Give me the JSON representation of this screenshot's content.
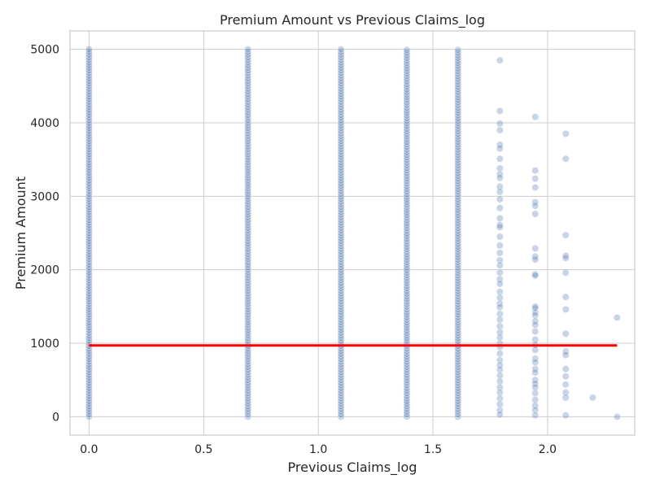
{
  "chart_data": {
    "type": "scatter",
    "title": "Premium Amount vs Previous Claims_log",
    "xlabel": "Previous Claims_log",
    "ylabel": "Premium Amount",
    "xlim": [
      -0.083,
      2.38
    ],
    "ylim": [
      -250,
      5250
    ],
    "x_ticks": [
      0.0,
      0.5,
      1.0,
      1.5,
      2.0
    ],
    "x_tick_labels": [
      "0.0",
      "0.5",
      "1.0",
      "1.5",
      "2.0"
    ],
    "y_ticks": [
      0,
      1000,
      2000,
      3000,
      4000,
      5000
    ],
    "y_tick_labels": [
      "0",
      "1000",
      "2000",
      "3000",
      "4000",
      "5000"
    ],
    "grid": true,
    "legend": "none",
    "point_color": "#4c72b0",
    "point_alpha": 0.3,
    "line_color": "#ff0000",
    "series": [
      {
        "values_by_x": [
          {
            "x": 0.0,
            "y_range": [
              0,
              5000
            ],
            "dense": true
          },
          {
            "x": 0.693,
            "y_range": [
              0,
              5000
            ],
            "dense": true
          },
          {
            "x": 1.099,
            "y_range": [
              0,
              5000
            ],
            "dense": true
          },
          {
            "x": 1.386,
            "y_range": [
              0,
              4990
            ],
            "dense": true
          },
          {
            "x": 1.609,
            "y_range": [
              0,
              4990
            ],
            "dense": true
          },
          {
            "x": 1.792,
            "y": [
              4850,
              4160,
              3990,
              3900,
              3700,
              3650,
              3510,
              3380,
              3300,
              3250,
              3130,
              3060,
              2960,
              2840,
              2700,
              2610,
              2580,
              2450,
              2330,
              2230,
              2130,
              2060,
              1960,
              1870,
              1810,
              1700,
              1620,
              1540,
              1490,
              1400,
              1320,
              1230,
              1150,
              1080,
              1000,
              950,
              860,
              770,
              700,
              640,
              560,
              480,
              400,
              330,
              250,
              170,
              90,
              30
            ]
          },
          {
            "x": 1.946,
            "y": [
              4080,
              3350,
              3240,
              3120,
              2920,
              2870,
              2760,
              2290,
              2180,
              2140,
              1940,
              1920,
              1500,
              1480,
              1420,
              1380,
              1300,
              1250,
              1160,
              1050,
              980,
              910,
              790,
              740,
              650,
              600,
              500,
              450,
              400,
              320,
              230,
              150,
              90,
              20
            ]
          },
          {
            "x": 2.079,
            "y": [
              3850,
              3510,
              2470,
              2190,
              2160,
              1960,
              1630,
              1460,
              1130,
              890,
              840,
              650,
              550,
              440,
              330,
              260,
              20
            ]
          },
          {
            "x": 2.197,
            "y": [
              260
            ]
          },
          {
            "x": 2.303,
            "y": [
              1350,
              0
            ]
          }
        ]
      }
    ],
    "mean_line": {
      "x": [
        0.0,
        2.303
      ],
      "y": 970
    }
  }
}
